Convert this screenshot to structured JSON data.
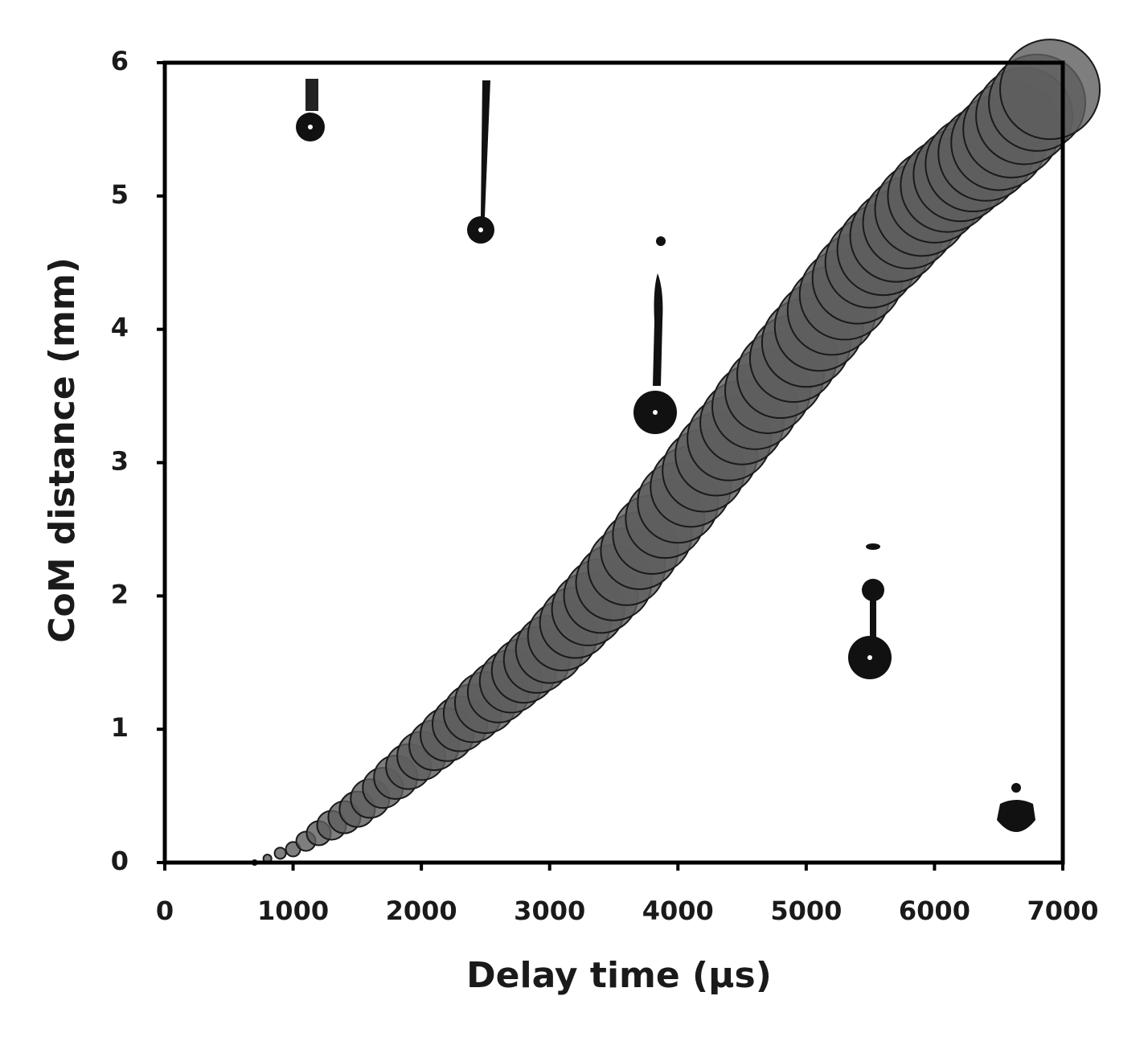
{
  "chart_data": {
    "type": "bubble",
    "xlabel": "Delay time (µs)",
    "ylabel": "CoM distance (mm)",
    "x": [
      700,
      800,
      900,
      1000,
      1100,
      1200,
      1300,
      1400,
      1500,
      1600,
      1700,
      1800,
      1900,
      2000,
      2100,
      2200,
      2300,
      2400,
      2500,
      2600,
      2700,
      2800,
      2900,
      3000,
      3100,
      3200,
      3300,
      3400,
      3500,
      3600,
      3700,
      3800,
      3900,
      4000,
      4100,
      4200,
      4300,
      4400,
      4500,
      4600,
      4700,
      4800,
      4900,
      5000,
      5100,
      5200,
      5300,
      5400,
      5500,
      5600,
      5700,
      5800,
      5900,
      6000,
      6100,
      6200,
      6300,
      6400,
      6500,
      6600,
      6700,
      6800,
      6900
    ],
    "values": [
      0,
      0.03,
      0.07,
      0.1,
      0.16,
      0.22,
      0.28,
      0.34,
      0.4,
      0.48,
      0.56,
      0.64,
      0.72,
      0.8,
      0.88,
      0.96,
      1.04,
      1.12,
      1.2,
      1.28,
      1.36,
      1.44,
      1.52,
      1.6,
      1.7,
      1.8,
      1.9,
      2.0,
      2.1,
      2.22,
      2.34,
      2.46,
      2.58,
      2.7,
      2.82,
      2.94,
      3.06,
      3.18,
      3.3,
      3.42,
      3.54,
      3.66,
      3.78,
      3.9,
      4.02,
      4.14,
      4.26,
      4.38,
      4.5,
      4.6,
      4.7,
      4.8,
      4.9,
      5.0,
      5.08,
      5.16,
      5.24,
      5.32,
      5.4,
      5.5,
      5.6,
      5.7,
      5.8
    ],
    "sizes": [
      3,
      5,
      7,
      9,
      12,
      15,
      18,
      20,
      22,
      24,
      25,
      27,
      28,
      30,
      31,
      33,
      34,
      36,
      38,
      38,
      39,
      40,
      41,
      42,
      43,
      44,
      45,
      46,
      47,
      48,
      48,
      49,
      49,
      50,
      50,
      51,
      51,
      52,
      52,
      53,
      53,
      54,
      54,
      55,
      55,
      55,
      56,
      56,
      56,
      57,
      57,
      57,
      58,
      58,
      58,
      58,
      59,
      59,
      59,
      60,
      60,
      60,
      62
    ],
    "color": "#5e5e5e",
    "xlim": [
      0,
      7000
    ],
    "xticks": [
      0,
      1000,
      2000,
      3000,
      4000,
      5000,
      6000,
      7000
    ],
    "ylim": [
      0,
      6
    ],
    "yticks": [
      0,
      1,
      2,
      3,
      4,
      5,
      6
    ]
  }
}
